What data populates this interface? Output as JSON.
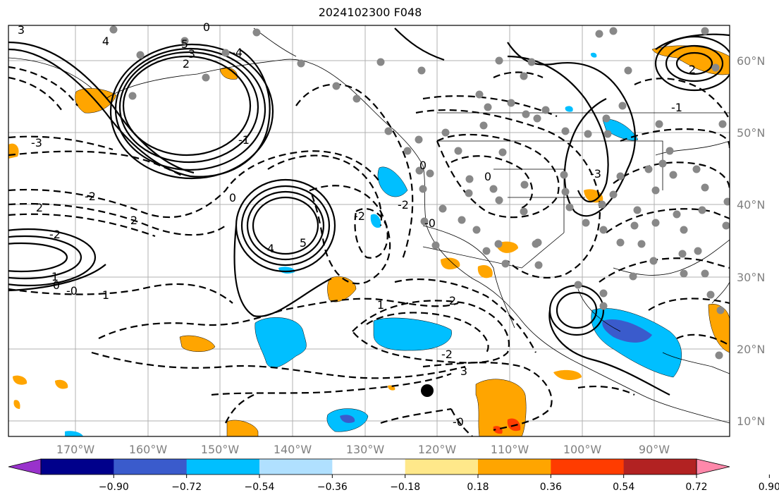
{
  "title": "2024102300 F048",
  "map": {
    "lon_ticks": [
      "170°W",
      "160°W",
      "150°W",
      "140°W",
      "130°W",
      "120°W",
      "110°W",
      "100°W",
      "90°W"
    ],
    "lat_ticks": [
      "60°N",
      "50°N",
      "40°N",
      "30°N",
      "20°N",
      "10°N"
    ],
    "contour_labels": [
      "3",
      "4",
      "5",
      "3",
      "2",
      "0",
      "-4",
      "-3",
      "-2",
      "2",
      "2",
      "-2",
      "1",
      "0",
      "-0",
      "4",
      "5",
      "1",
      "0",
      "-1",
      "-2",
      "-2",
      "0",
      "-0",
      "2",
      "3",
      "1",
      "-2",
      "-0",
      "0",
      "2",
      "-3",
      "-1"
    ]
  },
  "colorbar": {
    "ticks": [
      "−0.90",
      "−0.72",
      "−0.54",
      "−0.36",
      "−0.18",
      "0.18",
      "0.36",
      "0.54",
      "0.72",
      "0.90"
    ],
    "colors": [
      "#9932CC",
      "#00008B",
      "#3A5BCC",
      "#00BFFF",
      "#B0E0FF",
      "#FFFFFF",
      "#FFE88A",
      "#FFA500",
      "#FF3C00",
      "#B22222",
      "#FF88AA"
    ]
  }
}
